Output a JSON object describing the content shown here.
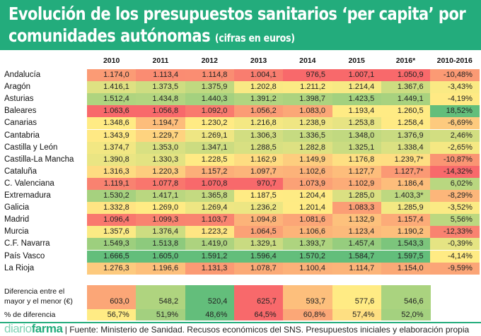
{
  "header": {
    "title_main": "Evolución de los presupuestos sanitarios ‘per capita’ por",
    "title_line2": "comunidades autónomas ",
    "title_sub": "(cifras en euros)"
  },
  "chart_data": {
    "type": "heatmap",
    "title": "Evolución de los presupuestos sanitarios ‘per capita’ por comunidades autónomas (cifras en euros)",
    "color_scale": {
      "min": "#F8696B",
      "mid": "#FFEB84",
      "max": "#63BE7B",
      "scope": "per-column"
    },
    "columns": [
      "2010",
      "2011",
      "2012",
      "2013",
      "2014",
      "2015",
      "2016*",
      "2010-2016"
    ],
    "rows": [
      {
        "name": "Andalucía",
        "values": [
          "1.174,0",
          "1.113,4",
          "1.114,8",
          "1.004,1",
          "976,5",
          "1.007,1",
          "1.050,9",
          "-10,48%"
        ]
      },
      {
        "name": "Aragón",
        "values": [
          "1.416,1",
          "1.373,5",
          "1.375,9",
          "1.202,8",
          "1.211,2",
          "1.214,4",
          "1.367,6",
          "-3,43%"
        ]
      },
      {
        "name": "Asturias",
        "values": [
          "1.512,4",
          "1.434,8",
          "1.440,3",
          "1.391,2",
          "1.398,7",
          "1.423,5",
          "1.449,1",
          "-4,19%"
        ]
      },
      {
        "name": "Baleares",
        "values": [
          "1.063,6",
          "1.056,8",
          "1.092,0",
          "1.056,2",
          "1.083,0",
          "1.193,4",
          "1.260,5",
          "18,52%"
        ]
      },
      {
        "name": "Canarias",
        "values": [
          "1.348,6",
          "1.194,7",
          "1.230,2",
          "1.216,8",
          "1.238,9",
          "1.253,8",
          "1.258,4",
          "-6,69%"
        ]
      },
      {
        "name": "Cantabria",
        "values": [
          "1.343,9",
          "1.229,7",
          "1.269,1",
          "1.306,3",
          "1.336,5",
          "1.348,0",
          "1.376,9",
          "2,46%"
        ]
      },
      {
        "name": "Castilla y León",
        "values": [
          "1.374,7",
          "1.353,0",
          "1.347,1",
          "1.288,5",
          "1.282,8",
          "1.325,1",
          "1.338,4",
          "-2,65%"
        ]
      },
      {
        "name": "Castilla-La Mancha",
        "values": [
          "1.390,8",
          "1.330,3",
          "1.228,5",
          "1.162,9",
          "1.149,9",
          "1.176,8",
          "1.239,7*",
          "-10,87%"
        ]
      },
      {
        "name": "Cataluña",
        "values": [
          "1.316,3",
          "1.220,3",
          "1.157,2",
          "1.097,7",
          "1.102,6",
          "1.127,7",
          "1.127,7*",
          "-14,32%"
        ]
      },
      {
        "name": "C. Valenciana",
        "values": [
          "1.119,1",
          "1.077,8",
          "1.070,8",
          "970,7",
          "1.073,9",
          "1.102,9",
          "1.186,4",
          "6,02%"
        ]
      },
      {
        "name": "Extremadura",
        "values": [
          "1.530,2",
          "1.417,1",
          "1.365,8",
          "1.187,5",
          "1.204,4",
          "1.285,0",
          "1.403,3*",
          "-8,29%"
        ]
      },
      {
        "name": "Galicia",
        "values": [
          "1.332,8",
          "1.269,0",
          "1.269,4",
          "1.236,2",
          "1.201,4",
          "1.083,3",
          "1.285,9",
          "-3,52%"
        ]
      },
      {
        "name": "Madrid",
        "values": [
          "1.096,4",
          "1.099,3",
          "1.103,7",
          "1.094,8",
          "1.081,6",
          "1.132,9",
          "1.157,4",
          "5,56%"
        ]
      },
      {
        "name": "Murcia",
        "values": [
          "1.357,6",
          "1.376,4",
          "1.223,2",
          "1.064,5",
          "1.106,6",
          "1.123,4",
          "1.190,2",
          "-12,33%"
        ]
      },
      {
        "name": "C.F. Navarra",
        "values": [
          "1.549,3",
          "1.513,8",
          "1.419,0",
          "1.329,1",
          "1.393,7",
          "1.457,4",
          "1.543,3",
          "-0,39%"
        ]
      },
      {
        "name": "País Vasco",
        "values": [
          "1.666,5",
          "1.605,0",
          "1.591,2",
          "1.596,4",
          "1.570,2",
          "1.584,7",
          "1.597,5",
          "-4,14%"
        ]
      },
      {
        "name": "La Rioja",
        "values": [
          "1.276,3",
          "1.196,6",
          "1.131,3",
          "1.078,7",
          "1.100,4",
          "1.114,7",
          "1.154,0",
          "-9,59%"
        ]
      }
    ],
    "summary_rows": [
      {
        "name": "Diferencia entre el mayor y el menor (€)",
        "label_line1": "Diferencia entre el",
        "label_line2": "mayor y el menor (€)",
        "values": [
          "603,0",
          "548,2",
          "520,4",
          "625,7",
          "593,7",
          "577,6",
          "546,6"
        ]
      },
      {
        "name": "% de diferencia",
        "label_line1": "% de diferencia",
        "values": [
          "56,7%",
          "51,9%",
          "48,6%",
          "64,5%",
          "60,8%",
          "57,4%",
          "52,0%"
        ]
      }
    ]
  },
  "footer": {
    "logo_part1": "diario",
    "logo_part2": "farma",
    "source": "| Fuente: Ministerio de Sanidad. Recusos económicos del SNS. Presupuestos iniciales y elaboración propia"
  }
}
